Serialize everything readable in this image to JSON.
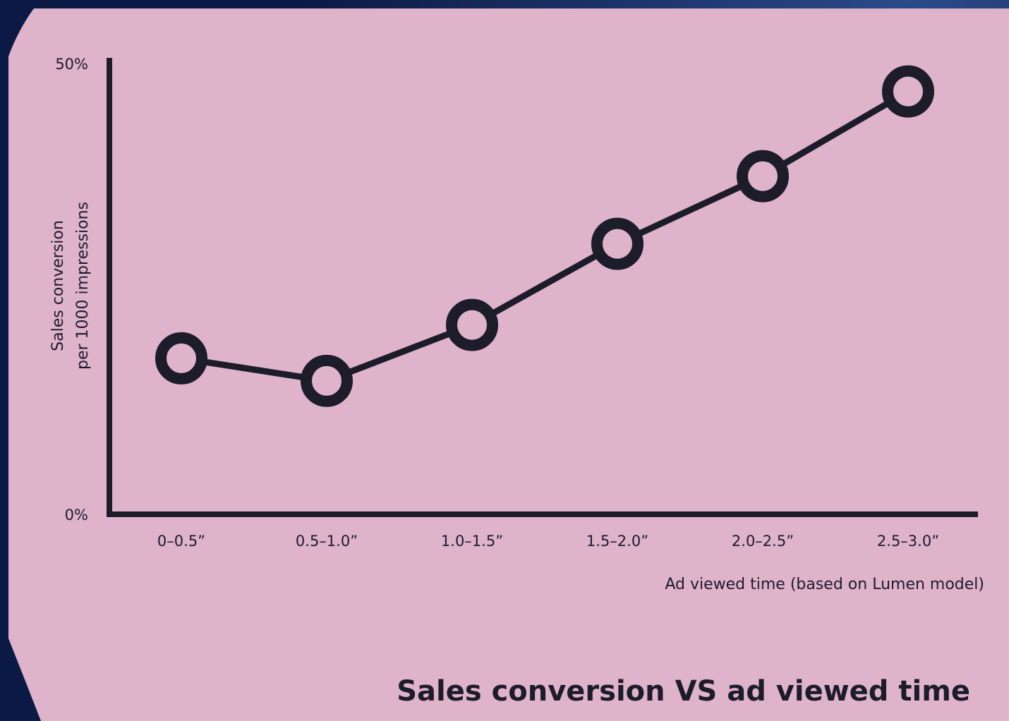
{
  "chart_data": {
    "type": "line",
    "title": "Sales conversion VS ad viewed time",
    "xlabel": "Ad viewed time (based on Lumen model)",
    "ylabel": [
      "Sales conversion",
      "per 1000 impressions"
    ],
    "categories": [
      "0–0.5”",
      "0.5–1.0”",
      "1.0–1.5”",
      "1.5–2.0”",
      "2.0–2.5”",
      "2.5–3.0”"
    ],
    "series": [
      {
        "color": "#1c1c2b",
        "values": [
          17.3,
          14.8,
          21.0,
          30.0,
          37.5,
          46.9
        ]
      }
    ],
    "ylim": [
      0,
      50
    ],
    "yticks": [
      {
        "value": 0,
        "label": "0%"
      },
      {
        "value": 50,
        "label": "50%"
      }
    ],
    "grid": false
  }
}
